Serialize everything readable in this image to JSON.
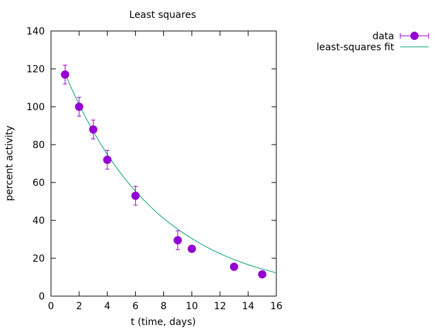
{
  "chart_data": {
    "type": "scatter",
    "title": "Least squares",
    "xlabel": "t (time, days)",
    "ylabel": "percent activity",
    "xlim": [
      0,
      16
    ],
    "ylim": [
      0,
      140
    ],
    "xticks": [
      0,
      2,
      4,
      6,
      8,
      10,
      12,
      14,
      16
    ],
    "yticks": [
      0,
      20,
      40,
      60,
      80,
      100,
      120,
      140
    ],
    "grid": false,
    "legend_position": "top-right, outside plot",
    "series": [
      {
        "name": "data",
        "kind": "points-with-errorbars",
        "color": "#9400d3",
        "x": [
          1,
          2,
          3,
          4,
          6,
          9,
          10,
          13,
          15
        ],
        "y": [
          117,
          100,
          88,
          72,
          53,
          29.5,
          25,
          15.5,
          11.5
        ],
        "yerr": [
          5,
          5,
          5,
          5,
          5,
          5,
          0,
          0,
          0
        ]
      },
      {
        "name": "least-squares fit",
        "kind": "line",
        "color": "#009e73",
        "x": [
          1,
          1.5,
          2,
          2.5,
          3,
          3.5,
          4,
          4.5,
          5,
          5.5,
          6,
          6.5,
          7,
          7.5,
          8,
          8.5,
          9,
          9.5,
          10,
          10.5,
          11,
          11.5,
          12,
          12.5,
          13,
          13.5,
          14,
          14.5,
          15,
          15.5,
          16
        ],
        "y": [
          117.5,
          109.0,
          101.1,
          93.8,
          87.0,
          80.7,
          74.8,
          69.4,
          64.4,
          59.7,
          55.4,
          51.4,
          47.7,
          44.2,
          41.0,
          38.1,
          35.3,
          32.8,
          30.4,
          28.2,
          26.1,
          24.2,
          22.5,
          20.8,
          19.3,
          17.9,
          16.6,
          15.4,
          14.3,
          13.3,
          12.3
        ]
      }
    ]
  }
}
